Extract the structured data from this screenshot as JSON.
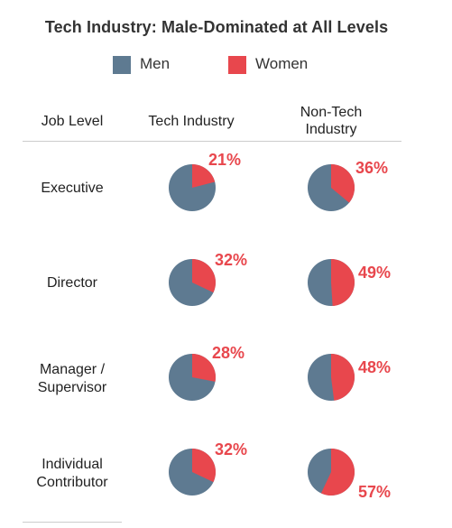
{
  "title": "Tech Industry: Male-Dominated at All Levels",
  "legend": {
    "men": "Men",
    "women": "Women"
  },
  "headers": {
    "job_level": "Job Level",
    "tech": "Tech Industry",
    "nontech_line1": "Non-Tech",
    "nontech_line2": "Industry"
  },
  "rows": [
    {
      "label_line1": "Executive",
      "label_line2": ""
    },
    {
      "label_line1": "Director",
      "label_line2": ""
    },
    {
      "label_line1": "Manager /",
      "label_line2": "Supervisor"
    },
    {
      "label_line1": "Individual",
      "label_line2": "Contributor"
    }
  ],
  "colors": {
    "men": "#5e7a91",
    "women": "#e8474d"
  },
  "chart_data": {
    "type": "pie",
    "title": "Tech Industry: Male-Dominated at All Levels",
    "categories": [
      "Executive",
      "Director",
      "Manager / Supervisor",
      "Individual Contributor"
    ],
    "series_labels": [
      "Men",
      "Women"
    ],
    "groups": [
      {
        "name": "Tech Industry",
        "women_pct": [
          21,
          32,
          28,
          32
        ]
      },
      {
        "name": "Non-Tech Industry",
        "women_pct": [
          36,
          49,
          48,
          57
        ]
      }
    ],
    "labels": {
      "tech": [
        "21%",
        "32%",
        "28%",
        "32%"
      ],
      "nontech": [
        "36%",
        "49%",
        "48%",
        "57%"
      ]
    }
  }
}
